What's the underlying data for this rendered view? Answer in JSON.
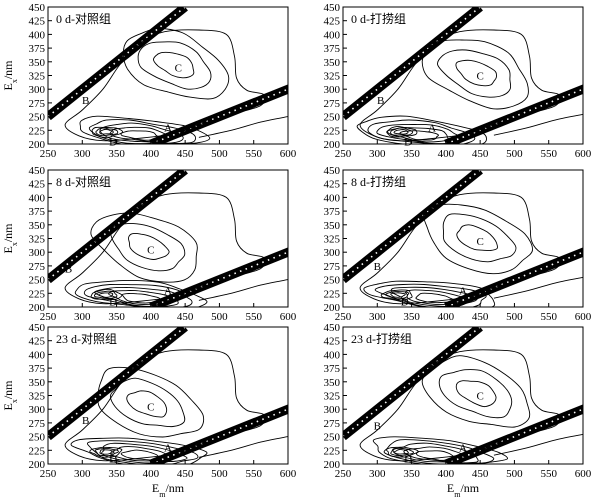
{
  "chart_data": [
    {
      "type": "contour",
      "title": "0 d-对照组",
      "xlabel": "",
      "ylabel": "E_x/nm",
      "xlim": [
        250,
        600
      ],
      "ylim": [
        200,
        450
      ],
      "xticks": [
        250,
        300,
        350,
        400,
        450,
        500,
        550,
        600
      ],
      "yticks": [
        200,
        225,
        250,
        275,
        300,
        325,
        350,
        375,
        400,
        425,
        450
      ],
      "peaks": [
        {
          "label": "C",
          "em": 440,
          "ex": 340
        },
        {
          "label": "B",
          "em": 305,
          "ex": 280
        },
        {
          "label": "A",
          "em": 425,
          "ex": 230
        },
        {
          "label": "D",
          "em": 345,
          "ex": 205
        }
      ]
    },
    {
      "type": "contour",
      "title": "0 d-打捞组",
      "xlabel": "",
      "ylabel": "",
      "xlim": [
        250,
        600
      ],
      "ylim": [
        200,
        450
      ],
      "xticks": [
        250,
        300,
        350,
        400,
        450,
        500,
        550,
        600
      ],
      "yticks": [
        200,
        225,
        250,
        275,
        300,
        325,
        350,
        375,
        400,
        425,
        450
      ],
      "peaks": [
        {
          "label": "C",
          "em": 450,
          "ex": 325
        },
        {
          "label": "B",
          "em": 305,
          "ex": 280
        },
        {
          "label": "A",
          "em": 380,
          "ex": 230
        },
        {
          "label": "D",
          "em": 345,
          "ex": 205
        }
      ]
    },
    {
      "type": "contour",
      "title": "8 d-对照组",
      "xlabel": "",
      "ylabel": "E_x/nm",
      "xlim": [
        250,
        600
      ],
      "ylim": [
        200,
        450
      ],
      "xticks": [
        250,
        300,
        350,
        400,
        450,
        500,
        550,
        600
      ],
      "yticks": [
        200,
        225,
        250,
        275,
        300,
        325,
        350,
        375,
        400,
        425,
        450
      ],
      "peaks": [
        {
          "label": "C",
          "em": 400,
          "ex": 305
        },
        {
          "label": "B",
          "em": 280,
          "ex": 270
        },
        {
          "label": "A",
          "em": 425,
          "ex": 230
        },
        {
          "label": "D",
          "em": 345,
          "ex": 210
        }
      ]
    },
    {
      "type": "contour",
      "title": "8 d-打捞组",
      "xlabel": "",
      "ylabel": "",
      "xlim": [
        250,
        600
      ],
      "ylim": [
        200,
        450
      ],
      "xticks": [
        250,
        300,
        350,
        400,
        450,
        500,
        550,
        600
      ],
      "yticks": [
        200,
        225,
        250,
        275,
        300,
        325,
        350,
        375,
        400,
        425,
        450
      ],
      "peaks": [
        {
          "label": "C",
          "em": 450,
          "ex": 320
        },
        {
          "label": "B",
          "em": 300,
          "ex": 275
        },
        {
          "label": "A",
          "em": 425,
          "ex": 230
        },
        {
          "label": "D",
          "em": 340,
          "ex": 210
        }
      ]
    },
    {
      "type": "contour",
      "title": "23 d-对照组",
      "xlabel": "E_m/nm",
      "ylabel": "E_x/nm",
      "xlim": [
        250,
        600
      ],
      "ylim": [
        200,
        450
      ],
      "xticks": [
        250,
        300,
        350,
        400,
        450,
        500,
        550,
        600
      ],
      "yticks": [
        200,
        225,
        250,
        275,
        300,
        325,
        350,
        375,
        400,
        425,
        450
      ],
      "peaks": [
        {
          "label": "C",
          "em": 400,
          "ex": 305
        },
        {
          "label": "B",
          "em": 305,
          "ex": 280
        },
        {
          "label": "A",
          "em": 425,
          "ex": 230
        },
        {
          "label": "D",
          "em": 345,
          "ex": 210
        }
      ]
    },
    {
      "type": "contour",
      "title": "23 d-打捞组",
      "xlabel": "E_m/nm",
      "ylabel": "",
      "xlim": [
        250,
        600
      ],
      "ylim": [
        200,
        450
      ],
      "xticks": [
        250,
        300,
        350,
        400,
        450,
        500,
        550,
        600
      ],
      "yticks": [
        200,
        225,
        250,
        275,
        300,
        325,
        350,
        375,
        400,
        425,
        450
      ],
      "peaks": [
        {
          "label": "C",
          "em": 450,
          "ex": 325
        },
        {
          "label": "B",
          "em": 300,
          "ex": 270
        },
        {
          "label": "A",
          "em": 425,
          "ex": 230
        },
        {
          "label": "D",
          "em": 345,
          "ex": 210
        }
      ]
    }
  ]
}
